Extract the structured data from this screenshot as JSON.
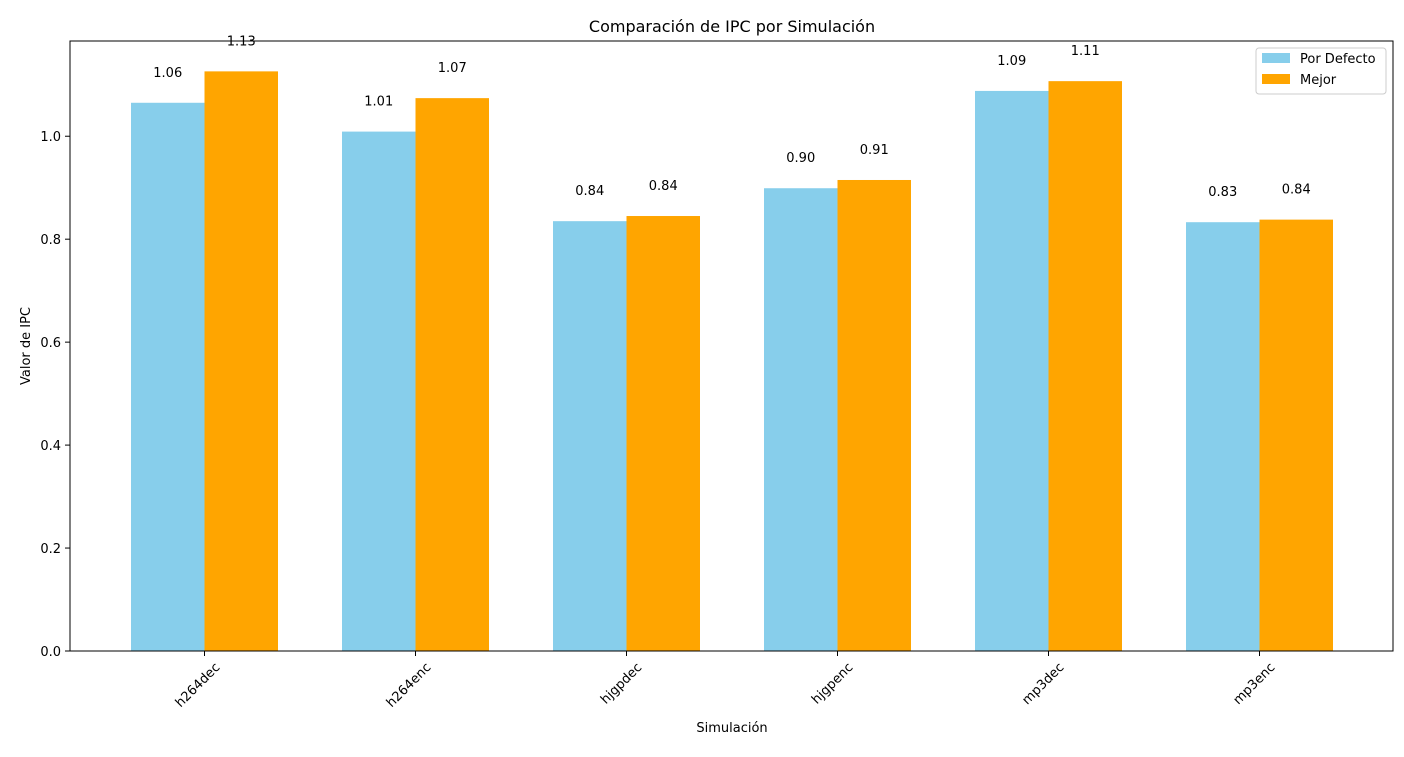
{
  "chart_data": {
    "type": "bar",
    "title": "Comparación de IPC por Simulación",
    "xlabel": "Simulación",
    "ylabel": "Valor de IPC",
    "categories": [
      "h264dec",
      "h264enc",
      "hjgpdec",
      "hjgpenc",
      "mp3dec",
      "mp3enc"
    ],
    "series": [
      {
        "name": "Por Defecto",
        "color": "#87ceeb",
        "values": [
          1.065,
          1.009,
          0.835,
          0.899,
          1.088,
          0.833
        ],
        "labels": [
          "1.06",
          "1.01",
          "0.84",
          "0.90",
          "1.09",
          "0.83"
        ]
      },
      {
        "name": "Mejor",
        "color": "#ffa500",
        "values": [
          1.126,
          1.074,
          0.845,
          0.915,
          1.107,
          0.838
        ],
        "labels": [
          "1.13",
          "1.07",
          "0.84",
          "0.91",
          "1.11",
          "0.84"
        ]
      }
    ],
    "ylim": [
      0,
      1.185
    ],
    "yticks": [
      0.0,
      0.2,
      0.4,
      0.6,
      0.8,
      1.0
    ],
    "ytick_labels": [
      "0.0",
      "0.2",
      "0.4",
      "0.6",
      "0.8",
      "1.0"
    ],
    "grid": false,
    "legend_position": "top-right",
    "xtick_rotation": -45
  }
}
